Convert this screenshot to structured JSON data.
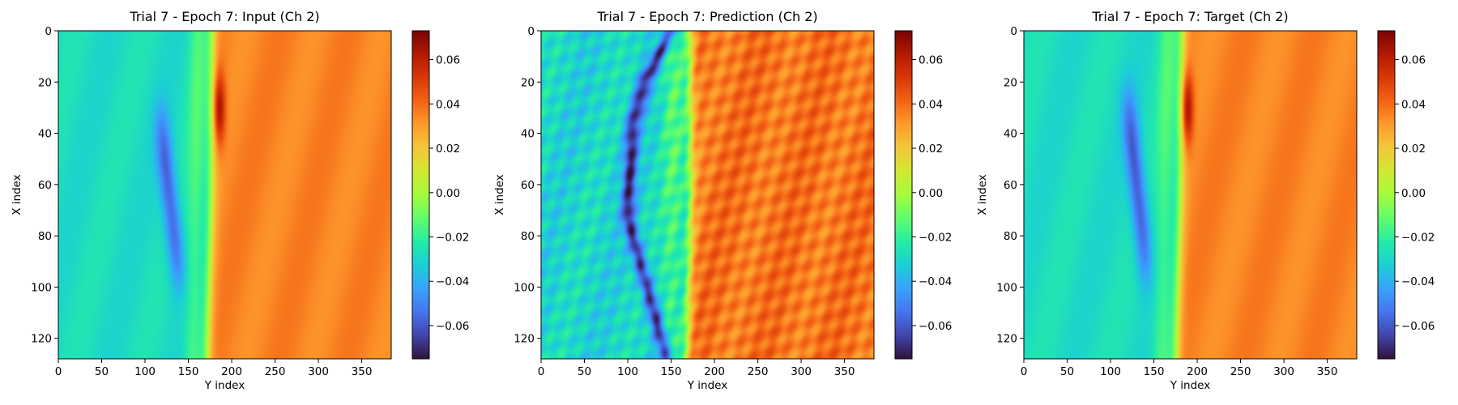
{
  "figure": {
    "colormap": "turbo",
    "colormap_stops": [
      "#30123b",
      "#4145ab",
      "#4675ed",
      "#39a2fc",
      "#1bcfd4",
      "#24eca6",
      "#61fc6c",
      "#a4fc3b",
      "#d1e834",
      "#f3c63a",
      "#fe9b2d",
      "#f36315",
      "#d93806",
      "#b11901",
      "#7a0403"
    ]
  },
  "chart_data": [
    {
      "type": "heatmap",
      "title": "Trial 7 - Epoch 7: Input (Ch 2)",
      "xlabel": "Y index",
      "ylabel": "X index",
      "x_ticks": [
        "0",
        "50",
        "100",
        "150",
        "200",
        "250",
        "300",
        "350"
      ],
      "y_ticks": [
        "0",
        "20",
        "40",
        "60",
        "80",
        "100",
        "120"
      ],
      "x_range": [
        0,
        384
      ],
      "y_range": [
        0,
        128
      ],
      "colorbar": {
        "vmin": -0.075,
        "vmax": 0.073,
        "ticks": [
          "0.06",
          "0.04",
          "0.02",
          "0.00",
          "−0.02",
          "−0.04",
          "−0.06"
        ]
      },
      "field": {
        "left_value": -0.028,
        "right_value": 0.035,
        "front_y": [
          178,
          176,
          172
        ],
        "trough": {
          "x_center": 65,
          "x_half_width": 34,
          "y": 128,
          "min_value": -0.058
        },
        "peak": {
          "x": 30,
          "y": 185,
          "max_value": 0.07
        }
      }
    },
    {
      "type": "heatmap",
      "title": "Trial 7 - Epoch 7: Prediction (Ch 2)",
      "xlabel": "Y index",
      "ylabel": "X index",
      "x_ticks": [
        "0",
        "50",
        "100",
        "150",
        "200",
        "250",
        "300",
        "350"
      ],
      "y_ticks": [
        "0",
        "20",
        "40",
        "60",
        "80",
        "100",
        "120"
      ],
      "x_range": [
        0,
        384
      ],
      "y_range": [
        0,
        128
      ],
      "colorbar": {
        "vmin": -0.075,
        "vmax": 0.073,
        "ticks": [
          "0.06",
          "0.04",
          "0.02",
          "0.00",
          "−0.02",
          "−0.04",
          "−0.06"
        ]
      },
      "field": {
        "left_value": -0.03,
        "right_value": 0.038,
        "front_y": [
          172,
          172,
          168
        ],
        "trough_line_y": [
          150,
          120,
          105,
          102,
          100,
          115,
          130,
          145
        ],
        "trough_min_value": -0.068,
        "noisy": true
      }
    },
    {
      "type": "heatmap",
      "title": "Trial 7 - Epoch 7: Target (Ch 2)",
      "xlabel": "Y index",
      "ylabel": "X index",
      "x_ticks": [
        "0",
        "50",
        "100",
        "150",
        "200",
        "250",
        "300",
        "350"
      ],
      "y_ticks": [
        "0",
        "20",
        "40",
        "60",
        "80",
        "100",
        "120"
      ],
      "x_range": [
        0,
        384
      ],
      "y_range": [
        0,
        128
      ],
      "colorbar": {
        "vmin": -0.075,
        "vmax": 0.073,
        "ticks": [
          "0.06",
          "0.04",
          "0.02",
          "0.00",
          "−0.02",
          "−0.04",
          "−0.06"
        ]
      },
      "field": {
        "left_value": -0.028,
        "right_value": 0.035,
        "front_y": [
          183,
          180,
          176
        ],
        "trough": {
          "x_center": 60,
          "x_half_width": 36,
          "y": 130,
          "min_value": -0.06
        },
        "peak": {
          "x": 30,
          "y": 188,
          "max_value": 0.072
        }
      }
    }
  ]
}
